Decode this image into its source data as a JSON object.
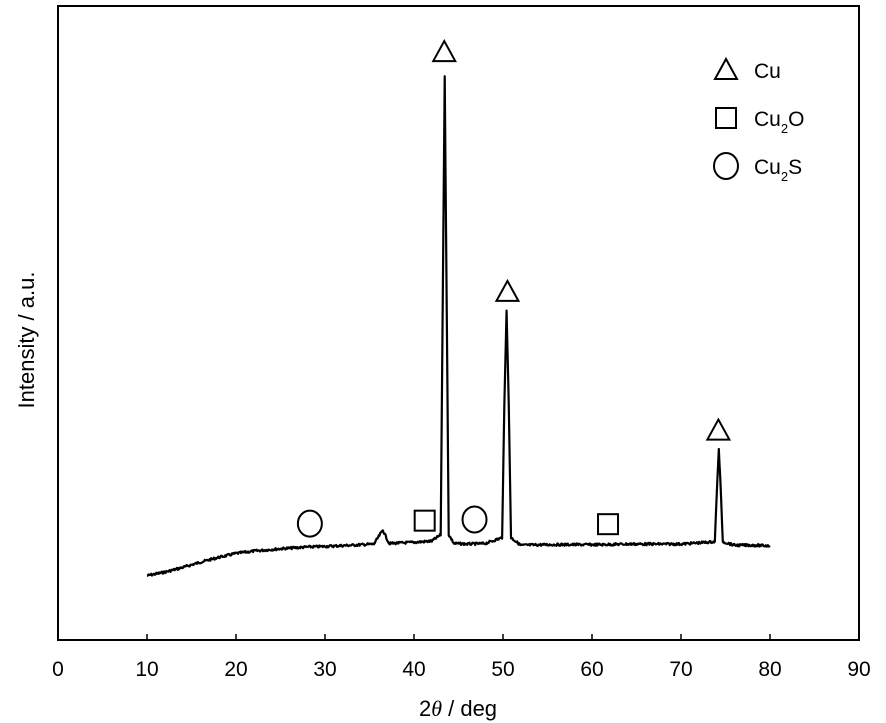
{
  "chart_data": {
    "type": "line",
    "xlabel_prefix": "2",
    "xlabel_symbol": "θ",
    "xlabel_suffix": " / deg",
    "ylabel": "Intensity / a.u.",
    "xlim": [
      0,
      90
    ],
    "ylim": [
      0,
      100
    ],
    "x_ticks": [
      "0",
      "10",
      "20",
      "30",
      "40",
      "50",
      "60",
      "70",
      "80",
      "90"
    ],
    "y_ticks_shown": false,
    "grid": false,
    "series": [
      {
        "values": [
          [
            10,
            11
          ],
          [
            12,
            11.6
          ],
          [
            14,
            12.4
          ],
          [
            16,
            13.3
          ],
          [
            18,
            14.1
          ],
          [
            20,
            14.8
          ],
          [
            22,
            15.2
          ],
          [
            25,
            15.6
          ],
          [
            28,
            15.9
          ],
          [
            30,
            16.0
          ],
          [
            33,
            16.2
          ],
          [
            35.5,
            16.4
          ],
          [
            36.5,
            18.8
          ],
          [
            37.2,
            16.5
          ],
          [
            40,
            16.7
          ],
          [
            42,
            16.9
          ],
          [
            43.0,
            18.0
          ],
          [
            43.3,
            70.0
          ],
          [
            43.45,
            96.5
          ],
          [
            43.6,
            70.0
          ],
          [
            43.9,
            18.0
          ],
          [
            44.5,
            16.5
          ],
          [
            46,
            16.4
          ],
          [
            48,
            16.5
          ],
          [
            49.9,
            17.5
          ],
          [
            50.15,
            40.0
          ],
          [
            50.4,
            56.5
          ],
          [
            50.65,
            40.0
          ],
          [
            50.9,
            17.5
          ],
          [
            52,
            16.2
          ],
          [
            55,
            16.3
          ],
          [
            58,
            16.3
          ],
          [
            61,
            16.3
          ],
          [
            64,
            16.4
          ],
          [
            67,
            16.4
          ],
          [
            70,
            16.4
          ],
          [
            73.8,
            16.8
          ],
          [
            74.1,
            28.0
          ],
          [
            74.25,
            32.5
          ],
          [
            74.4,
            28.0
          ],
          [
            74.7,
            16.8
          ],
          [
            76,
            16.2
          ],
          [
            78,
            16.2
          ],
          [
            80,
            16.1
          ]
        ]
      }
    ],
    "markers": [
      {
        "phase": "Cu",
        "shape": "triangle",
        "x": 43.4,
        "y": 100.5
      },
      {
        "phase": "Cu",
        "shape": "triangle",
        "x": 50.5,
        "y": 59.5
      },
      {
        "phase": "Cu",
        "shape": "triangle",
        "x": 74.2,
        "y": 35.8
      },
      {
        "phase": "Cu2O",
        "shape": "square",
        "x": 41.2,
        "y": 20.4
      },
      {
        "phase": "Cu2O",
        "shape": "square",
        "x": 61.8,
        "y": 19.8
      },
      {
        "phase": "Cu2S",
        "shape": "circle",
        "x": 28.3,
        "y": 19.9
      },
      {
        "phase": "Cu2S",
        "shape": "circle",
        "x": 46.8,
        "y": 20.6
      }
    ],
    "legend": {
      "position": "top-right",
      "entries": [
        {
          "shape": "triangle",
          "base": "Cu",
          "sub": "",
          "tail": ""
        },
        {
          "shape": "square",
          "base": "Cu",
          "sub": "2",
          "tail": "O"
        },
        {
          "shape": "circle",
          "base": "Cu",
          "sub": "2",
          "tail": "S"
        }
      ]
    },
    "colors": {
      "line": "#000000",
      "axis": "#000000",
      "background": "#ffffff"
    }
  }
}
